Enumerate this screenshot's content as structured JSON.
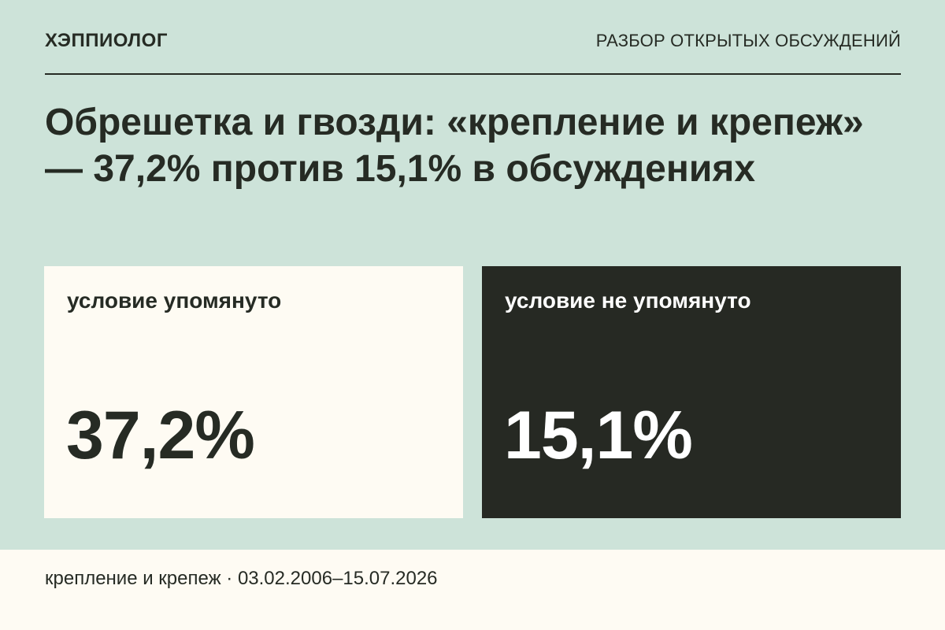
{
  "header": {
    "brand": "ХЭППИОЛОГ",
    "section": "РАЗБОР ОТКРЫТЫХ ОБСУЖДЕНИЙ"
  },
  "headline": "Обрешетка и гвозди: «крепление и крепеж» — 37,2% против 15,1% в обсуждениях",
  "cards": [
    {
      "label": "условие упомянуто",
      "value": "37,2%"
    },
    {
      "label": "условие не упомянуто",
      "value": "15,1%"
    }
  ],
  "footer": {
    "text": "крепление и крепеж · 03.02.2006–15.07.2026"
  },
  "colors": {
    "background": "#cde3d9",
    "light_card": "#fefbf3",
    "dark_card": "#262923",
    "text": "#262b24"
  }
}
